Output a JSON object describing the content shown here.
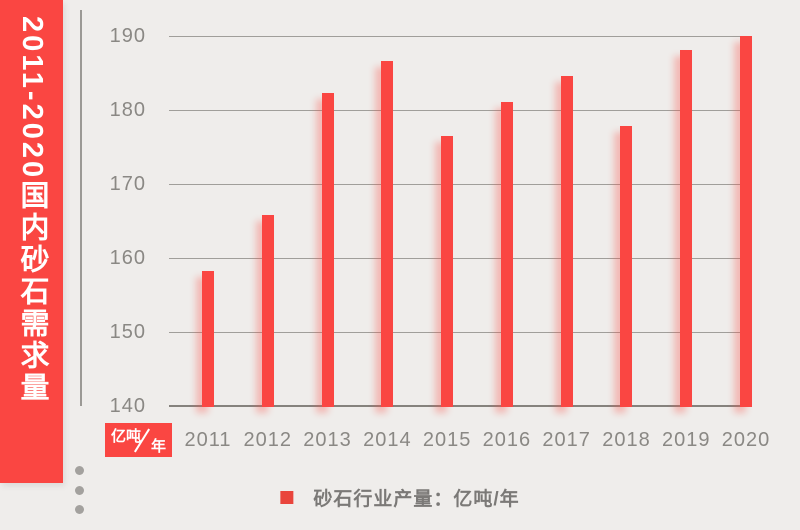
{
  "banner": {
    "title": "2011-2020国内砂石需求量",
    "bg_color": "#fa4642",
    "text_color": "#ffffff"
  },
  "unit_badge": {
    "top_text": "亿吨",
    "bottom_text": "年",
    "bg_color": "#fa4642"
  },
  "legend": {
    "marker_color": "#e9453c",
    "label": "砂石行业产量：亿吨/年"
  },
  "decor": {
    "dot_count": 3,
    "dot_color": "#a3a19e"
  },
  "chart_data": {
    "type": "bar",
    "title": "2011-2020国内砂石需求量",
    "categories": [
      "2011",
      "2012",
      "2013",
      "2014",
      "2015",
      "2016",
      "2017",
      "2018",
      "2019",
      "2020"
    ],
    "values": [
      158.2,
      165.8,
      182.2,
      186.5,
      176.4,
      181,
      184.5,
      177.8,
      188,
      190
    ],
    "series_name": "砂石行业产量",
    "unit": "亿吨/年",
    "ylabel": "亿吨/年",
    "xlabel": "",
    "ylim": [
      140,
      190
    ],
    "yticks": [
      140,
      150,
      160,
      170,
      180,
      190
    ],
    "bar_color": "#fa4642",
    "grid": true,
    "legend_position": "bottom"
  }
}
